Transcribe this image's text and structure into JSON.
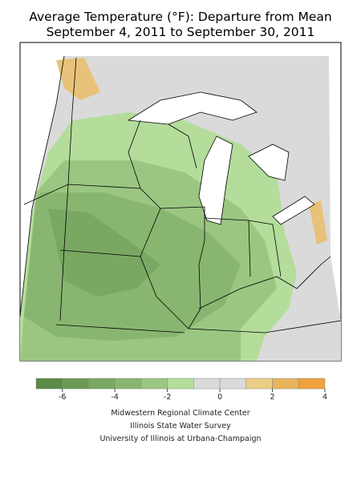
{
  "header": {
    "title_lines": [
      "Average Temperature (°F): Departure from Mean",
      "September 4, 2011 to September 30, 2011"
    ]
  },
  "legend": {
    "bins": [
      -7,
      -6,
      -5,
      -4,
      -3,
      -2,
      -1,
      0,
      1,
      2,
      3,
      4
    ],
    "colors": [
      "#5b8b46",
      "#6a9a54",
      "#79a862",
      "#88b670",
      "#9bc682",
      "#b4dd9c",
      "#dadada",
      "#dadada",
      "#eccd85",
      "#e9b45c",
      "#f0a23c"
    ],
    "ticks": [
      -6,
      -4,
      -2,
      0,
      2,
      4
    ]
  },
  "credits": [
    "Midwestern Regional Climate Center",
    "Illinois State Water Survey",
    "University of Illinois at Urbana-Champaign"
  ]
}
